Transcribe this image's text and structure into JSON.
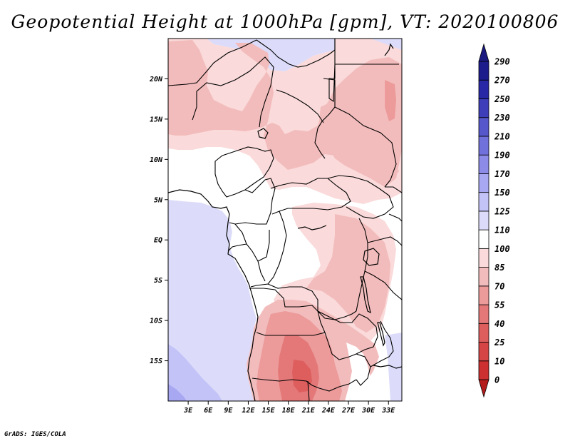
{
  "title": "Geopotential Height at 1000hPa [gpm], VT: 2020100806",
  "credit": "GrADS: IGES/COLA",
  "map": {
    "variable": "Geopotential Height",
    "level": "1000hPa",
    "units": "gpm",
    "valid_time": "2020100806",
    "lon_range": [
      0,
      35
    ],
    "lat_range": [
      -20,
      25
    ],
    "x_ticks": [
      "3E",
      "6E",
      "9E",
      "12E",
      "15E",
      "18E",
      "21E",
      "24E",
      "27E",
      "30E",
      "33E"
    ],
    "y_ticks": [
      "20N",
      "15N",
      "10N",
      "5N",
      "EQ",
      "5S",
      "10S",
      "15S"
    ]
  },
  "colorbar": {
    "levels": [
      "0",
      "10",
      "25",
      "40",
      "55",
      "70",
      "85",
      "100",
      "110",
      "125",
      "150",
      "170",
      "190",
      "210",
      "230",
      "250",
      "270",
      "290"
    ],
    "colors": [
      "#b41c1c",
      "#cc3030",
      "#d64545",
      "#de5e5e",
      "#e47878",
      "#ec9a9a",
      "#f3bcbc",
      "#fadada",
      "#ffffff",
      "#dcdcfa",
      "#c3c3f8",
      "#a8a8f2",
      "#8c8ce8",
      "#7171dc",
      "#5757cc",
      "#3e3ebb",
      "#2828a6",
      "#1c1c8c",
      "#1a1a80"
    ]
  }
}
